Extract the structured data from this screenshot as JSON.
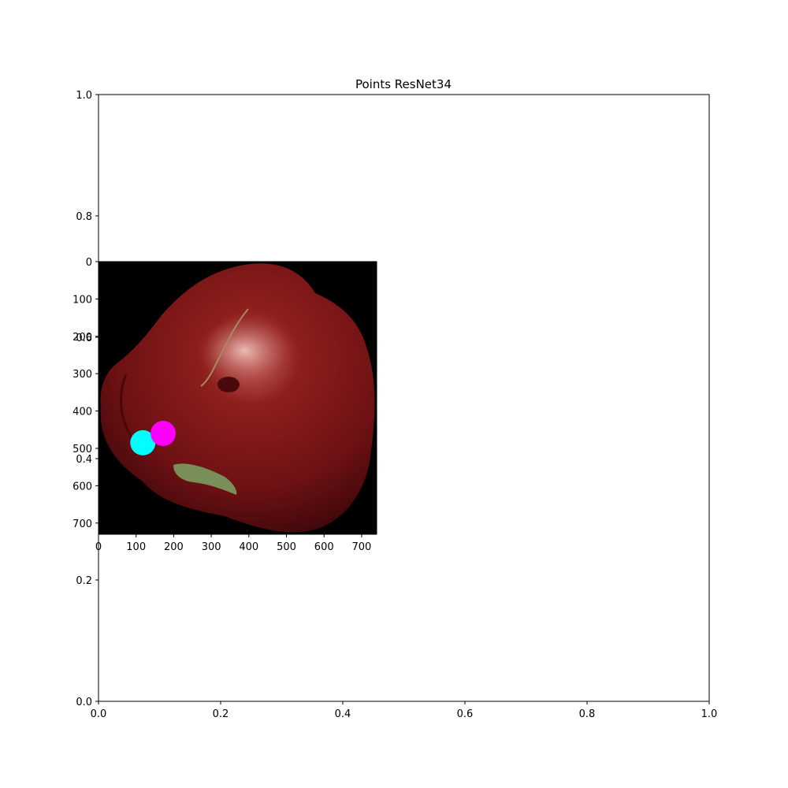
{
  "chart_data": [
    {
      "type": "scatter",
      "title": "Points ResNet34",
      "xlabel": "",
      "ylabel": "",
      "xlim": [
        0.0,
        1.0
      ],
      "ylim": [
        0.0,
        1.0
      ],
      "x_ticks": [
        "0.0",
        "0.2",
        "0.4",
        "0.6",
        "0.8",
        "1.0"
      ],
      "y_ticks": [
        "0.0",
        "0.2",
        "0.4",
        "0.6",
        "0.8",
        "1.0"
      ],
      "grid": false,
      "series": []
    },
    {
      "type": "scatter",
      "title": "",
      "description_of_background": "photo of a red bell pepper",
      "xlim": [
        0,
        740
      ],
      "ylim": [
        730,
        0
      ],
      "x_ticks": [
        "0",
        "100",
        "200",
        "300",
        "400",
        "500",
        "600",
        "700"
      ],
      "y_ticks": [
        "0",
        "100",
        "200",
        "300",
        "400",
        "500",
        "600",
        "700"
      ],
      "grid": false,
      "points": [
        {
          "x": 118,
          "y": 485,
          "color": "#00ffff"
        },
        {
          "x": 172,
          "y": 460,
          "color": "#ff00ff"
        }
      ]
    }
  ]
}
